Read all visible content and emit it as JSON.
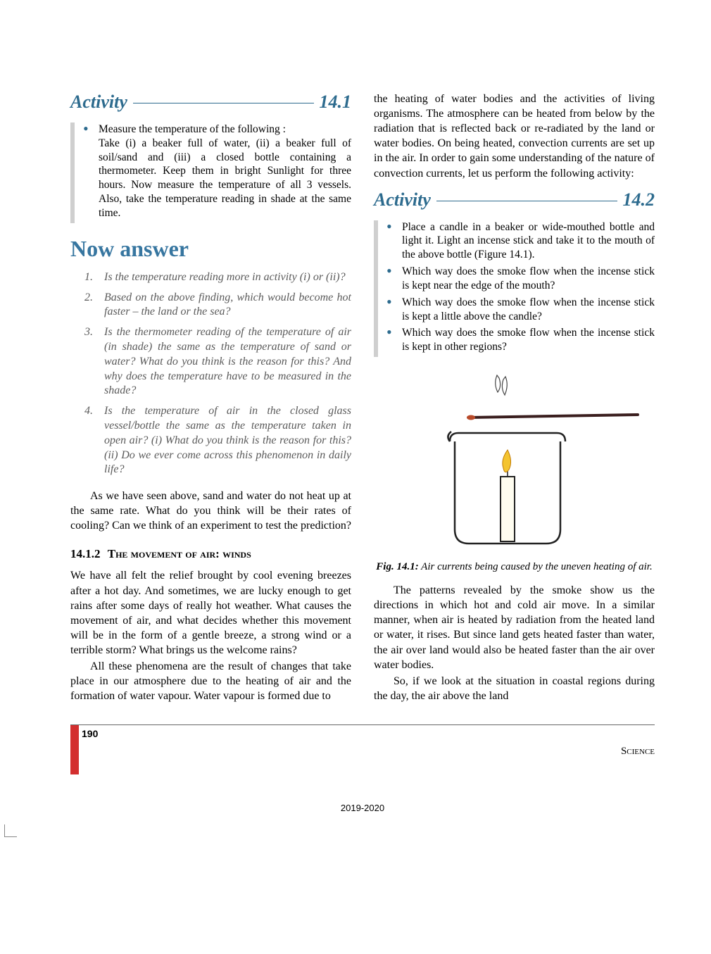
{
  "left": {
    "activity_label": "Activity",
    "activity_number": "14.1",
    "activity_bullets": [
      "Measure the temperature of the following :\nTake (i) a beaker full of water, (ii) a beaker full of soil/sand and (iii) a closed bottle containing a thermometer. Keep them in bright Sunlight for three hours. Now measure the temperature of all 3 vessels. Also, take the temperature reading in shade at the same time."
    ],
    "now_answer": "Now answer",
    "questions": [
      "Is the temperature reading more in activity (i) or (ii)?",
      "Based on the above finding, which would become hot faster – the land or the sea?",
      "Is the thermometer reading of the temperature of air (in shade) the same as the temperature of sand or water? What do you think is the reason for this? And why does the temperature have to be measured in the shade?",
      "Is the temperature of air in the closed glass vessel/bottle the same as the temperature taken in open air? (i) What do you think is the reason for this? (ii) Do we ever come across this phenomenon in daily life?"
    ],
    "para_after_questions": "As we have seen above, sand and water do not heat up at the same rate. What do you think will be their rates of cooling? Can we think of an experiment to test the prediction?",
    "section_num": "14.1.2",
    "section_title": "The movement of air: winds",
    "winds_para1": "We have all felt the relief brought by cool evening breezes after a hot day. And sometimes, we are lucky enough to get rains after some days of really hot weather. What causes the movement of air, and what decides whether this movement will be in the form of a gentle breeze, a strong wind or a terrible storm? What brings us the welcome rains?",
    "winds_para2": "All these phenomena are the result of changes that take place in our atmosphere due to the heating of air and the formation of water vapour. Water vapour is formed due to"
  },
  "right": {
    "top_para": "the heating of water bodies and the activities of living organisms. The atmosphere can be heated from below by the radiation that is reflected back or re-radiated by the land or water bodies. On being heated, convection currents are set up in the air. In order to gain some understanding of the nature of convection currents, let us perform the following activity:",
    "activity_label": "Activity",
    "activity_number": "14.2",
    "activity_bullets": [
      "Place a candle in a beaker or wide-mouthed bottle and light it. Light an incense stick and take it to the mouth of the above bottle (Figure 14.1).",
      "Which way does the smoke flow when the incense stick is kept near the edge of the mouth?",
      "Which way does the smoke flow when the incense stick is kept a little above the candle?",
      "Which way does the smoke flow when the incense stick is kept in other regions?"
    ],
    "figure_label": "Fig. 14.1:",
    "figure_caption": " Air currents being caused by the uneven heating of air.",
    "para_after_fig1": "The patterns revealed by the smoke show us the directions in which hot and cold air move. In a similar manner, when air is heated by radiation from the heated land or water, it rises. But since land gets heated faster than water, the air over land would also be heated faster than the air over water bodies.",
    "para_after_fig2": "So, if we look at the situation in coastal regions during the day, the air above the land"
  },
  "footer": {
    "page_num": "190",
    "subject": "Science",
    "year": "2019-2020"
  },
  "colors": {
    "heading_blue": "#2d6b8e",
    "light_blue": "#3776a0",
    "grey_bar": "#cfcfcf",
    "red_bar": "#d32f2f",
    "question_grey": "#5a5a5a"
  }
}
